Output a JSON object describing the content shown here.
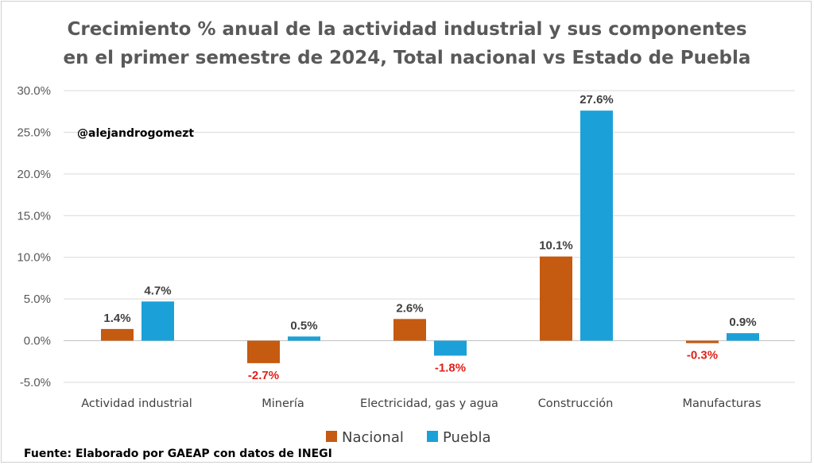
{
  "chart_data": {
    "type": "bar",
    "title_lines": [
      "Crecimiento % anual de la actividad industrial y sus componentes",
      "en el primer semestre de 2024, Total nacional vs Estado de Puebla"
    ],
    "categories": [
      "Actividad industrial",
      "Minería",
      "Electricidad, gas y agua",
      "Construcción",
      "Manufacturas"
    ],
    "series": [
      {
        "name": "Nacional",
        "color": "#C55A11",
        "values": [
          1.4,
          -2.7,
          2.6,
          10.1,
          -0.3
        ],
        "labels": [
          "1.4%",
          "-2.7%",
          "2.6%",
          "10.1%",
          "-0.3%"
        ]
      },
      {
        "name": "Puebla",
        "color": "#1BA1D8",
        "values": [
          4.7,
          0.5,
          -1.8,
          27.6,
          0.9
        ],
        "labels": [
          "4.7%",
          "0.5%",
          "-1.8%",
          "27.6%",
          "0.9%"
        ]
      }
    ],
    "ylim": [
      -5,
      30
    ],
    "yticks": [
      "30.0%",
      "25.0%",
      "20.0%",
      "15.0%",
      "10.0%",
      "5.0%",
      "0.0%",
      "-5.0%"
    ],
    "ytick_values": [
      30,
      25,
      20,
      15,
      10,
      5,
      0,
      -5
    ],
    "grid": true,
    "legend_placement": "bottom",
    "positive_label_color": "#404040",
    "negative_label_color": "#E0201B",
    "watermark": "@alejandrogomezt",
    "source": "Fuente: Elaborado por GAEAP con datos de INEGI"
  }
}
